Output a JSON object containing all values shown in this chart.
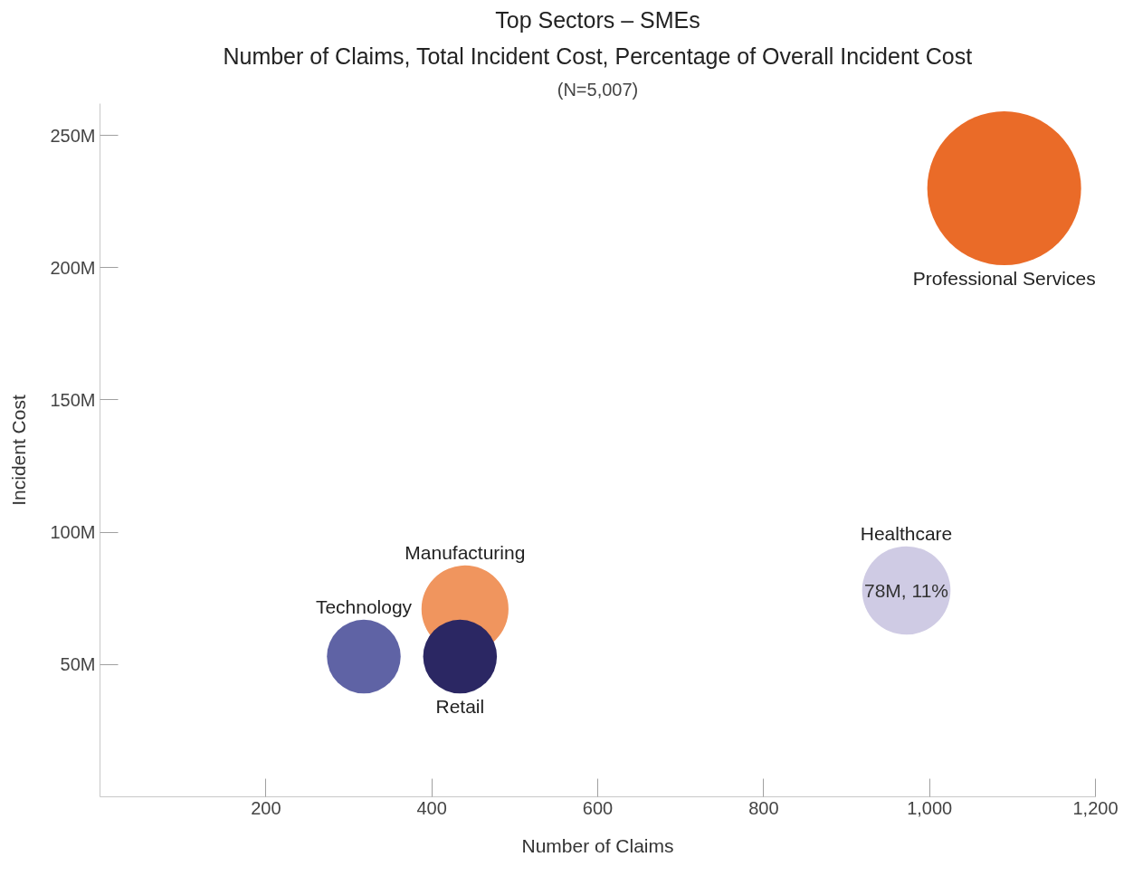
{
  "chart_data": {
    "type": "bubble",
    "title": "Top Sectors – SMEs",
    "subtitle": "Number of Claims, Total Incident Cost, Percentage of Overall Incident Cost",
    "annotations": [
      "(N=5,007)"
    ],
    "xlabel": "Number of Claims",
    "ylabel": "Incident Cost",
    "series": [
      {
        "name": "Professional Services",
        "color": "#ea6b28",
        "x": [
          1090
        ],
        "values": [
          230
        ],
        "sizes": [
          1
        ]
      },
      {
        "name": "Healthcare",
        "color": "#cfcbe4",
        "x": [
          972
        ],
        "values": [
          78
        ],
        "sizes": [
          0.33
        ],
        "value_labels": [
          "78M, 11%"
        ]
      },
      {
        "name": "Manufacturing",
        "color": "#f0955e",
        "x": [
          440
        ],
        "values": [
          71
        ],
        "sizes": [
          0.32
        ]
      },
      {
        "name": "Technology",
        "color": "#5f63a5",
        "x": [
          318
        ],
        "values": [
          53
        ],
        "sizes": [
          0.23
        ]
      },
      {
        "name": "Retail",
        "color": "#2b2763",
        "x": [
          434
        ],
        "values": [
          53
        ],
        "sizes": [
          0.23
        ]
      }
    ],
    "xlim": [
      0,
      1200
    ],
    "xticks": [
      200,
      400,
      600,
      800,
      {
        "value": 1000,
        "label": "1,000"
      },
      {
        "value": 1200,
        "label": "1,200"
      }
    ],
    "ylim": [
      0,
      262
    ],
    "yticks": [
      {
        "value": 50,
        "label": "50M"
      },
      {
        "value": 100,
        "label": "100M"
      },
      {
        "value": 150,
        "label": "150M"
      },
      {
        "value": 200,
        "label": "200M"
      },
      {
        "value": 250,
        "label": "250M"
      }
    ],
    "grid": false
  }
}
